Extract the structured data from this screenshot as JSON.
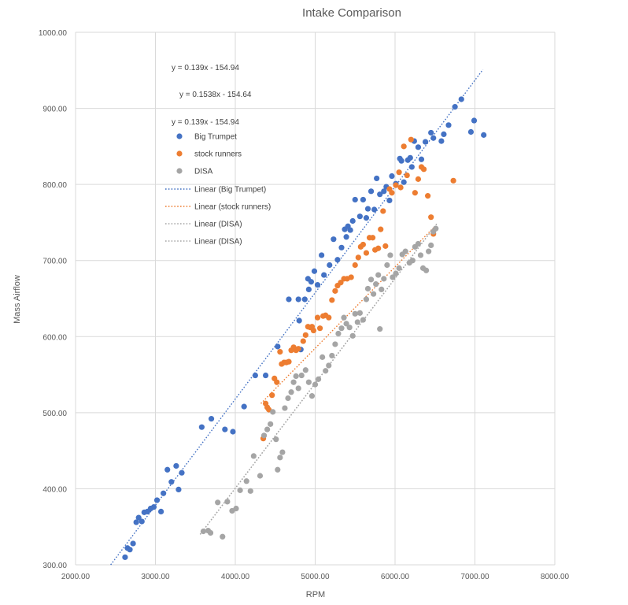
{
  "chart_data": {
    "type": "scatter",
    "title": "Intake Comparison",
    "xlabel": "RPM",
    "ylabel": "Mass Airflow",
    "xlim": [
      2000,
      8000
    ],
    "ylim": [
      300,
      1000
    ],
    "x_ticks": [
      "2000.00",
      "3000.00",
      "4000.00",
      "5000.00",
      "6000.00",
      "7000.00",
      "8000.00"
    ],
    "y_ticks": [
      "300.00",
      "400.00",
      "500.00",
      "600.00",
      "700.00",
      "800.00",
      "900.00",
      "1000.00"
    ],
    "grid": "on",
    "legend_position": "top-left",
    "equations": [
      "y = 0.139x - 154.94",
      "y = 0.1538x - 154.64",
      "y = 0.139x - 154.94"
    ],
    "series": [
      {
        "name": "Big Trumpet",
        "color": "#4472C4",
        "points": [
          [
            2620,
            310
          ],
          [
            2650,
            322
          ],
          [
            2680,
            320
          ],
          [
            2720,
            328
          ],
          [
            2760,
            356
          ],
          [
            2790,
            362
          ],
          [
            2830,
            357
          ],
          [
            2860,
            369
          ],
          [
            2900,
            370
          ],
          [
            2940,
            374
          ],
          [
            2980,
            376
          ],
          [
            3020,
            385
          ],
          [
            3070,
            370
          ],
          [
            3100,
            394
          ],
          [
            3150,
            425
          ],
          [
            3200,
            409
          ],
          [
            3260,
            430
          ],
          [
            3290,
            399
          ],
          [
            3330,
            421
          ],
          [
            3580,
            481
          ],
          [
            3700,
            492
          ],
          [
            3870,
            478
          ],
          [
            3970,
            475
          ],
          [
            4110,
            508
          ],
          [
            4250,
            549
          ],
          [
            4380,
            549
          ],
          [
            4530,
            587
          ],
          [
            4670,
            649
          ],
          [
            4790,
            649
          ],
          [
            4800,
            621
          ],
          [
            4820,
            583
          ],
          [
            4870,
            649
          ],
          [
            4910,
            676
          ],
          [
            4920,
            662
          ],
          [
            4950,
            672
          ],
          [
            4990,
            686
          ],
          [
            5030,
            668
          ],
          [
            5080,
            707
          ],
          [
            5110,
            681
          ],
          [
            5180,
            694
          ],
          [
            5230,
            728
          ],
          [
            5280,
            701
          ],
          [
            5330,
            717
          ],
          [
            5370,
            741
          ],
          [
            5390,
            731
          ],
          [
            5410,
            745
          ],
          [
            5440,
            740
          ],
          [
            5470,
            752
          ],
          [
            5500,
            780
          ],
          [
            5560,
            758
          ],
          [
            5600,
            780
          ],
          [
            5640,
            756
          ],
          [
            5660,
            768
          ],
          [
            5700,
            791
          ],
          [
            5740,
            767
          ],
          [
            5770,
            808
          ],
          [
            5810,
            787
          ],
          [
            5860,
            791
          ],
          [
            5890,
            797
          ],
          [
            5930,
            779
          ],
          [
            5960,
            811
          ],
          [
            6010,
            801
          ],
          [
            6060,
            834
          ],
          [
            6080,
            831
          ],
          [
            6110,
            803
          ],
          [
            6160,
            832
          ],
          [
            6190,
            835
          ],
          [
            6210,
            823
          ],
          [
            6240,
            857
          ],
          [
            6290,
            849
          ],
          [
            6330,
            833
          ],
          [
            6380,
            856
          ],
          [
            6450,
            868
          ],
          [
            6480,
            861
          ],
          [
            6580,
            857
          ],
          [
            6610,
            866
          ],
          [
            6670,
            878
          ],
          [
            6750,
            902
          ],
          [
            6830,
            912
          ],
          [
            6950,
            869
          ],
          [
            6990,
            884
          ],
          [
            7110,
            865
          ]
        ]
      },
      {
        "name": "stock runners",
        "color": "#ED7D31",
        "points": [
          [
            4350,
            466
          ],
          [
            4380,
            512
          ],
          [
            4400,
            507
          ],
          [
            4420,
            504
          ],
          [
            4460,
            523
          ],
          [
            4490,
            545
          ],
          [
            4520,
            540
          ],
          [
            4560,
            580
          ],
          [
            4580,
            564
          ],
          [
            4610,
            566
          ],
          [
            4640,
            566
          ],
          [
            4670,
            567
          ],
          [
            4700,
            582
          ],
          [
            4730,
            586
          ],
          [
            4760,
            582
          ],
          [
            4790,
            584
          ],
          [
            4850,
            594
          ],
          [
            4880,
            602
          ],
          [
            4910,
            613
          ],
          [
            4940,
            612
          ],
          [
            4960,
            613
          ],
          [
            4980,
            608
          ],
          [
            5030,
            625
          ],
          [
            5060,
            611
          ],
          [
            5100,
            627
          ],
          [
            5130,
            628
          ],
          [
            5170,
            625
          ],
          [
            5210,
            648
          ],
          [
            5250,
            660
          ],
          [
            5280,
            667
          ],
          [
            5320,
            671
          ],
          [
            5360,
            676
          ],
          [
            5400,
            676
          ],
          [
            5450,
            678
          ],
          [
            5500,
            694
          ],
          [
            5540,
            704
          ],
          [
            5570,
            718
          ],
          [
            5600,
            721
          ],
          [
            5640,
            710
          ],
          [
            5680,
            730
          ],
          [
            5720,
            730
          ],
          [
            5750,
            714
          ],
          [
            5790,
            716
          ],
          [
            5820,
            741
          ],
          [
            5850,
            765
          ],
          [
            5880,
            719
          ],
          [
            5930,
            794
          ],
          [
            5960,
            789
          ],
          [
            6010,
            799
          ],
          [
            6050,
            816
          ],
          [
            6070,
            796
          ],
          [
            6110,
            850
          ],
          [
            6150,
            812
          ],
          [
            6200,
            859
          ],
          [
            6250,
            789
          ],
          [
            6290,
            807
          ],
          [
            6330,
            823
          ],
          [
            6360,
            820
          ],
          [
            6410,
            785
          ],
          [
            6450,
            757
          ],
          [
            6480,
            735
          ],
          [
            6730,
            805
          ]
        ]
      },
      {
        "name": "DISA",
        "color": "#A5A5A5",
        "points": [
          [
            3600,
            344
          ],
          [
            3660,
            345
          ],
          [
            3690,
            342
          ],
          [
            3780,
            382
          ],
          [
            3840,
            337
          ],
          [
            3900,
            383
          ],
          [
            3960,
            371
          ],
          [
            4010,
            374
          ],
          [
            4060,
            398
          ],
          [
            4140,
            410
          ],
          [
            4190,
            397
          ],
          [
            4230,
            443
          ],
          [
            4310,
            417
          ],
          [
            4360,
            470
          ],
          [
            4400,
            478
          ],
          [
            4440,
            485
          ],
          [
            4470,
            501
          ],
          [
            4510,
            465
          ],
          [
            4530,
            425
          ],
          [
            4560,
            441
          ],
          [
            4590,
            448
          ],
          [
            4620,
            506
          ],
          [
            4660,
            519
          ],
          [
            4700,
            527
          ],
          [
            4730,
            540
          ],
          [
            4760,
            548
          ],
          [
            4790,
            532
          ],
          [
            4830,
            549
          ],
          [
            4880,
            556
          ],
          [
            4920,
            540
          ],
          [
            4960,
            522
          ],
          [
            5000,
            537
          ],
          [
            5040,
            544
          ],
          [
            5090,
            573
          ],
          [
            5130,
            555
          ],
          [
            5170,
            562
          ],
          [
            5210,
            575
          ],
          [
            5250,
            590
          ],
          [
            5290,
            604
          ],
          [
            5330,
            611
          ],
          [
            5360,
            625
          ],
          [
            5390,
            617
          ],
          [
            5430,
            612
          ],
          [
            5470,
            601
          ],
          [
            5500,
            630
          ],
          [
            5530,
            619
          ],
          [
            5560,
            631
          ],
          [
            5600,
            622
          ],
          [
            5640,
            649
          ],
          [
            5660,
            663
          ],
          [
            5700,
            675
          ],
          [
            5730,
            656
          ],
          [
            5760,
            669
          ],
          [
            5790,
            681
          ],
          [
            5830,
            662
          ],
          [
            5860,
            676
          ],
          [
            5900,
            694
          ],
          [
            5940,
            707
          ],
          [
            5970,
            678
          ],
          [
            6010,
            683
          ],
          [
            6050,
            690
          ],
          [
            6090,
            708
          ],
          [
            6130,
            712
          ],
          [
            6180,
            697
          ],
          [
            6220,
            700
          ],
          [
            6250,
            718
          ],
          [
            6290,
            722
          ],
          [
            6320,
            707
          ],
          [
            6350,
            690
          ],
          [
            6390,
            687
          ],
          [
            6420,
            712
          ],
          [
            6450,
            720
          ],
          [
            6480,
            738
          ],
          [
            6510,
            742
          ],
          [
            5810,
            610
          ]
        ]
      }
    ],
    "trendlines": [
      {
        "name": "Linear (Big Trumpet)",
        "color": "#4472C4",
        "x_start": 2440,
        "x_end": 7100,
        "y_start": 300,
        "y_end": 951
      },
      {
        "name": "Linear (stock runners)",
        "color": "#ED7D31",
        "x_start": 4320,
        "x_end": 6500,
        "y_start": 512,
        "y_end": 745
      },
      {
        "name": "Linear (DISA)",
        "color": "#A5A5A5",
        "x_start": 3560,
        "x_end": 6520,
        "y_start": 340,
        "y_end": 748
      },
      {
        "name": "Linear (DISA)",
        "color": "#A5A5A5",
        "x_start": 3560,
        "x_end": 6520,
        "y_start": 340,
        "y_end": 748
      }
    ]
  }
}
